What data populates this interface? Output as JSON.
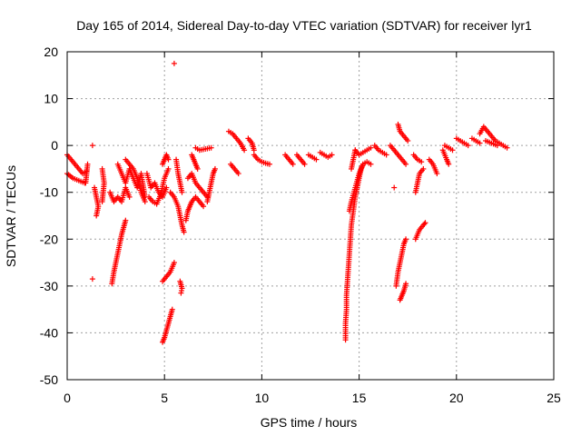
{
  "chart_data": {
    "type": "scatter",
    "title": "Day 165 of 2014, Sidereal Day-to-day VTEC variation (SDTVAR) for receiver lyr1",
    "xlabel": "GPS time / hours",
    "ylabel": "SDTVAR / TECUs",
    "xlim": [
      0,
      25
    ],
    "ylim": [
      -50,
      20
    ],
    "xticks": [
      0,
      5,
      10,
      15,
      20,
      25
    ],
    "yticks": [
      -50,
      -40,
      -30,
      -20,
      -10,
      0,
      10,
      20
    ],
    "grid": true,
    "marker": "+",
    "color": "#ff0000",
    "segments": [
      [
        [
          0.0,
          -2
        ],
        [
          0.2,
          -3
        ],
        [
          0.4,
          -4
        ],
        [
          0.6,
          -5
        ],
        [
          0.8,
          -6
        ],
        [
          1.0,
          -5.5
        ]
      ],
      [
        [
          0.0,
          -6
        ],
        [
          0.3,
          -7
        ],
        [
          0.6,
          -7.5
        ],
        [
          0.9,
          -8
        ]
      ],
      [
        [
          1.05,
          -4
        ],
        [
          1.0,
          -6
        ],
        [
          0.95,
          -8
        ]
      ],
      [
        [
          1.3,
          0
        ]
      ],
      [
        [
          1.3,
          -28.5
        ]
      ],
      [
        [
          1.4,
          -9
        ],
        [
          1.5,
          -11
        ],
        [
          1.6,
          -13
        ],
        [
          1.5,
          -15
        ]
      ],
      [
        [
          1.8,
          -5
        ],
        [
          1.9,
          -8
        ],
        [
          1.85,
          -10
        ],
        [
          1.8,
          -12
        ]
      ],
      [
        [
          2.3,
          -29.5
        ],
        [
          2.4,
          -27
        ],
        [
          2.5,
          -25
        ],
        [
          2.6,
          -23
        ],
        [
          2.7,
          -21
        ],
        [
          2.8,
          -19
        ],
        [
          2.9,
          -17.5
        ],
        [
          3.0,
          -16
        ]
      ],
      [
        [
          2.2,
          -10
        ],
        [
          2.4,
          -12
        ],
        [
          2.6,
          -11
        ],
        [
          2.8,
          -12
        ],
        [
          3.0,
          -9
        ],
        [
          3.2,
          -11
        ]
      ],
      [
        [
          2.6,
          -4
        ],
        [
          2.8,
          -6
        ],
        [
          3.0,
          -8
        ],
        [
          3.2,
          -5
        ],
        [
          3.4,
          -7
        ],
        [
          3.6,
          -9
        ],
        [
          3.8,
          -6
        ],
        [
          4.0,
          -11
        ]
      ],
      [
        [
          3.0,
          -3
        ],
        [
          3.2,
          -4
        ],
        [
          3.4,
          -5
        ],
        [
          3.6,
          -7
        ],
        [
          3.8,
          -10
        ],
        [
          4.0,
          -12
        ]
      ],
      [
        [
          4.1,
          -6
        ],
        [
          4.3,
          -9
        ],
        [
          4.5,
          -8
        ],
        [
          4.7,
          -10
        ],
        [
          4.9,
          -11
        ],
        [
          5.1,
          -9
        ]
      ],
      [
        [
          4.2,
          -11
        ],
        [
          4.4,
          -12
        ],
        [
          4.6,
          -12.5
        ],
        [
          4.8,
          -10.5
        ],
        [
          5.0,
          -7
        ],
        [
          5.2,
          -5
        ]
      ],
      [
        [
          4.9,
          -4
        ],
        [
          5.0,
          -3
        ],
        [
          5.1,
          -2
        ],
        [
          5.2,
          -3
        ]
      ],
      [
        [
          4.9,
          -42
        ],
        [
          5.0,
          -41
        ],
        [
          5.1,
          -39.5
        ],
        [
          5.2,
          -38
        ],
        [
          5.3,
          -36.5
        ],
        [
          5.4,
          -35
        ]
      ],
      [
        [
          4.9,
          -29
        ],
        [
          5.1,
          -28
        ],
        [
          5.3,
          -27
        ],
        [
          5.5,
          -25
        ]
      ],
      [
        [
          5.5,
          17.5
        ]
      ],
      [
        [
          5.3,
          -10
        ],
        [
          5.5,
          -11
        ],
        [
          5.7,
          -13
        ],
        [
          5.8,
          -15
        ],
        [
          5.9,
          -17
        ],
        [
          6.0,
          -18.5
        ]
      ],
      [
        [
          5.8,
          -29
        ],
        [
          5.9,
          -30.5
        ],
        [
          5.85,
          -31.5
        ]
      ],
      [
        [
          5.6,
          -3
        ],
        [
          5.7,
          -6
        ],
        [
          5.8,
          -8
        ],
        [
          5.9,
          -10
        ]
      ],
      [
        [
          6.1,
          -16
        ],
        [
          6.2,
          -14
        ],
        [
          6.3,
          -13
        ],
        [
          6.4,
          -12
        ],
        [
          6.6,
          -11
        ],
        [
          6.8,
          -12
        ],
        [
          7.0,
          -13
        ]
      ],
      [
        [
          6.2,
          -7
        ],
        [
          6.4,
          -6
        ],
        [
          6.6,
          -8
        ],
        [
          6.8,
          -9
        ],
        [
          7.0,
          -10
        ],
        [
          7.2,
          -11
        ]
      ],
      [
        [
          6.4,
          -2
        ],
        [
          6.5,
          -3
        ],
        [
          6.6,
          -4
        ],
        [
          6.7,
          -5
        ]
      ],
      [
        [
          7.2,
          -12
        ],
        [
          7.3,
          -10
        ],
        [
          7.4,
          -8
        ],
        [
          7.5,
          -6
        ],
        [
          7.6,
          -5
        ]
      ],
      [
        [
          6.6,
          -0.5
        ],
        [
          6.8,
          -1
        ],
        [
          7.4,
          -0.5
        ]
      ],
      [
        [
          8.3,
          3
        ],
        [
          8.5,
          2.5
        ],
        [
          8.7,
          1.5
        ],
        [
          8.9,
          0.5
        ],
        [
          9.1,
          -1
        ]
      ],
      [
        [
          8.4,
          -4
        ],
        [
          8.6,
          -5
        ],
        [
          8.8,
          -6
        ]
      ],
      [
        [
          9.3,
          1.5
        ],
        [
          9.5,
          0.5
        ],
        [
          9.6,
          -1
        ]
      ],
      [
        [
          9.6,
          -2
        ],
        [
          9.8,
          -3
        ],
        [
          10.0,
          -3.5
        ],
        [
          10.2,
          -3.8
        ],
        [
          10.4,
          -4
        ]
      ],
      [
        [
          11.2,
          -2
        ],
        [
          11.4,
          -3
        ],
        [
          11.6,
          -4
        ]
      ],
      [
        [
          11.8,
          -2
        ],
        [
          12.0,
          -3
        ],
        [
          12.2,
          -4
        ]
      ],
      [
        [
          12.4,
          -2
        ],
        [
          12.6,
          -2.5
        ],
        [
          12.8,
          -3
        ]
      ],
      [
        [
          13.0,
          -1.5
        ],
        [
          13.2,
          -2
        ],
        [
          13.4,
          -2.5
        ],
        [
          13.6,
          -2
        ]
      ],
      [
        [
          14.3,
          -41.5
        ],
        [
          14.3,
          -38
        ],
        [
          14.35,
          -35
        ],
        [
          14.35,
          -32
        ],
        [
          14.4,
          -29
        ],
        [
          14.45,
          -26
        ],
        [
          14.5,
          -23
        ],
        [
          14.55,
          -20
        ],
        [
          14.6,
          -17
        ],
        [
          14.7,
          -14
        ],
        [
          14.8,
          -11
        ],
        [
          14.9,
          -9
        ],
        [
          15.0,
          -7
        ],
        [
          15.1,
          -5
        ],
        [
          15.2,
          -4
        ]
      ],
      [
        [
          14.5,
          -14
        ],
        [
          14.6,
          -12
        ],
        [
          14.8,
          -9
        ],
        [
          15.0,
          -6
        ],
        [
          15.2,
          -4
        ],
        [
          15.4,
          -3.5
        ],
        [
          15.6,
          -4
        ]
      ],
      [
        [
          14.8,
          -1
        ],
        [
          15.0,
          -2
        ],
        [
          15.2,
          -1.5
        ],
        [
          15.4,
          -1
        ],
        [
          15.6,
          -0.5
        ]
      ],
      [
        [
          14.6,
          -5
        ],
        [
          14.7,
          -3
        ],
        [
          14.8,
          -1
        ]
      ],
      [
        [
          15.8,
          0
        ],
        [
          16.0,
          -1
        ],
        [
          16.2,
          -1.5
        ],
        [
          16.4,
          -2
        ]
      ],
      [
        [
          16.6,
          0
        ],
        [
          16.8,
          -1
        ],
        [
          17.0,
          -2
        ],
        [
          17.2,
          -3
        ],
        [
          17.4,
          -4
        ]
      ],
      [
        [
          17.0,
          4.5
        ],
        [
          17.1,
          3
        ],
        [
          17.3,
          2
        ],
        [
          17.5,
          1
        ]
      ],
      [
        [
          16.8,
          -9
        ]
      ],
      [
        [
          16.9,
          -30
        ],
        [
          17.0,
          -27
        ],
        [
          17.1,
          -25
        ],
        [
          17.2,
          -23
        ],
        [
          17.3,
          -21
        ],
        [
          17.4,
          -20
        ]
      ],
      [
        [
          17.1,
          -33
        ],
        [
          17.2,
          -32
        ],
        [
          17.3,
          -31
        ],
        [
          17.4,
          -29.5
        ]
      ],
      [
        [
          17.8,
          -2
        ],
        [
          18.0,
          -3
        ],
        [
          18.2,
          -3.5
        ]
      ],
      [
        [
          17.9,
          -10
        ],
        [
          18.0,
          -8
        ],
        [
          18.1,
          -6
        ],
        [
          18.3,
          -5
        ]
      ],
      [
        [
          17.9,
          -20
        ],
        [
          18.1,
          -18
        ],
        [
          18.3,
          -17
        ],
        [
          18.4,
          -16.5
        ]
      ],
      [
        [
          18.6,
          -3
        ],
        [
          18.8,
          -4
        ],
        [
          19.0,
          -6
        ]
      ],
      [
        [
          19.3,
          -1
        ],
        [
          19.5,
          -3
        ],
        [
          19.6,
          -4
        ]
      ],
      [
        [
          19.4,
          0
        ],
        [
          19.6,
          -0.5
        ],
        [
          19.8,
          -1
        ]
      ],
      [
        [
          20.0,
          1.5
        ],
        [
          20.2,
          1
        ],
        [
          20.4,
          0.5
        ],
        [
          20.6,
          0
        ]
      ],
      [
        [
          20.8,
          1.5
        ],
        [
          21.0,
          1
        ],
        [
          21.2,
          0.5
        ]
      ],
      [
        [
          21.2,
          2.5
        ],
        [
          21.4,
          4
        ],
        [
          21.6,
          3
        ],
        [
          21.8,
          2
        ],
        [
          22.0,
          1
        ],
        [
          22.2,
          0.5
        ],
        [
          22.4,
          0
        ],
        [
          22.6,
          -0.5
        ]
      ],
      [
        [
          21.5,
          1
        ],
        [
          21.8,
          0.5
        ],
        [
          22.1,
          0
        ]
      ]
    ]
  }
}
